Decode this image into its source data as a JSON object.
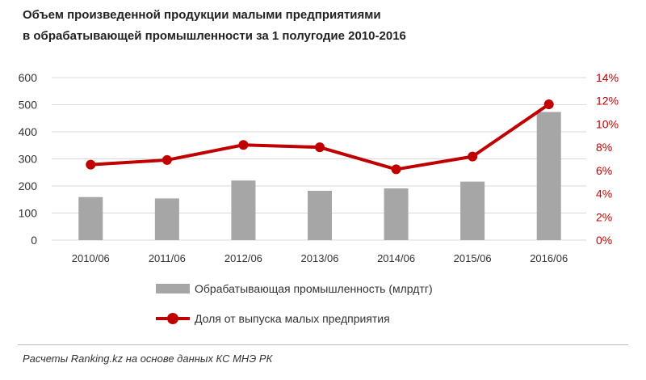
{
  "chart_data": {
    "type": "bar+line",
    "title_lines": [
      "Объем произведенной продукции  малыми предприятиями",
      "в обрабатывающей  промышленности  за 1 полугодие 2010-2016"
    ],
    "categories": [
      "2010/06",
      "2011/06",
      "2012/06",
      "2013/06",
      "2014/06",
      "2015/06",
      "2016/06"
    ],
    "series": [
      {
        "name": "Обрабатывающая промышленность (млрдтг)",
        "type": "bar",
        "axis": "left",
        "color": "#a6a6a6",
        "values": [
          159,
          154,
          220,
          182,
          191,
          216,
          473
        ]
      },
      {
        "name": "Доля от выпуска малых предприятия",
        "type": "line",
        "axis": "right",
        "color": "#c00000",
        "values": [
          6.5,
          6.9,
          8.2,
          8.0,
          6.1,
          7.2,
          11.7
        ]
      }
    ],
    "ylim": [
      0,
      600
    ],
    "yticks": [
      "0",
      "100",
      "200",
      "300",
      "400",
      "500",
      "600"
    ],
    "y2lim": [
      0,
      14
    ],
    "y2ticks": [
      "0%",
      "2%",
      "4%",
      "6%",
      "8%",
      "10%",
      "12%",
      "14%"
    ],
    "grid": true,
    "legend_position": "bottom"
  },
  "source": "Расчеты Ranking.kz на основе данных КС МНЭ РК"
}
